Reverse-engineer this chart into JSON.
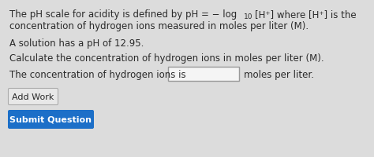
{
  "bg_color": "#dcdcdc",
  "stripe_colors": [
    "#d0d8cc",
    "#ccd4d0",
    "#d4d8d0",
    "#ccd8cc",
    "#d0dcd4"
  ],
  "text_color": "#2a2a2a",
  "line1_part1": "The pH scale for acidity is defined by pH = − log",
  "line1_sub": "10",
  "line1_part2": "[H⁺] where [H⁺] is the",
  "line2": "concentration of hydrogen ions measured in moles per liter (M).",
  "line3": "A solution has a pH of 12.95.",
  "line4": "Calculate the concentration of hydrogen ions in moles per liter (M).",
  "line5a": "The concentration of hydrogen ions is",
  "line5b": "moles per liter.",
  "btn1_text": "Add Work",
  "btn1_facecolor": "#e8e8e8",
  "btn1_edgecolor": "#aaaaaa",
  "btn2_text": "Submit Question",
  "btn2_facecolor": "#1c6fc8",
  "btn2_textcolor": "#ffffff",
  "input_facecolor": "#f5f5f5",
  "input_edgecolor": "#999999",
  "font_size": 8.5,
  "font_size_sub": 6.5
}
